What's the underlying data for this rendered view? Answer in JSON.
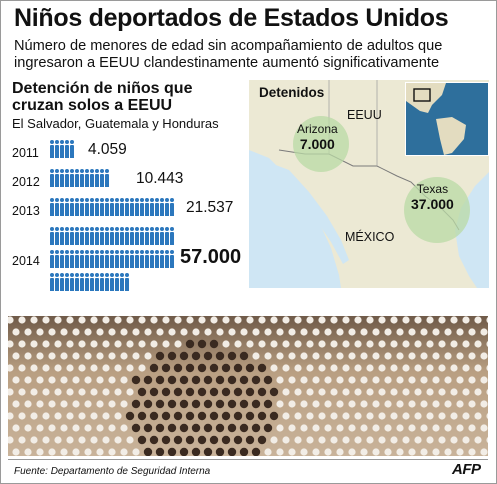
{
  "title": "Niños deportados de Estados Unidos",
  "subtitle": "Número de menores de edad sin acompañamiento de adultos que ingresaron a EEUU clandestinamente aumentó significativamente",
  "left_panel": {
    "heading": "Detención de niños que cruzan solos a EEUU",
    "countries": "El Salvador, Guatemala y Honduras",
    "rows": [
      {
        "year": "2011",
        "value": "4.059",
        "figures": 5
      },
      {
        "year": "2012",
        "value": "10.443",
        "figures": 12
      },
      {
        "year": "2013",
        "value": "21.537",
        "figures": 25
      },
      {
        "year": "2014",
        "value": "57.000",
        "figures": 66
      }
    ]
  },
  "map": {
    "title": "Detenidos",
    "country_us": "EEUU",
    "country_mx": "MÉXICO",
    "arizona_label": "Arizona",
    "arizona_value": "7.000",
    "texas_label": "Texas",
    "texas_value": "37.000"
  },
  "footer": {
    "source": "Fuente: Departamento de Seguridad Interna",
    "logo": "AFP"
  },
  "colors": {
    "figure": "#2b77bd",
    "map_land": "#ece9d4",
    "map_water": "#cfe6f4",
    "bubble": "#b9d9a6"
  }
}
